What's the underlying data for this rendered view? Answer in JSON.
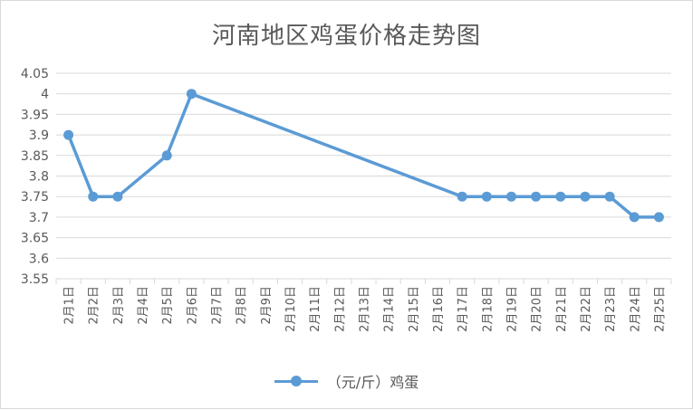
{
  "chart_data": {
    "type": "line",
    "title": "河南地区鸡蛋价格走势图",
    "categories": [
      "2月1日",
      "2月2日",
      "2月3日",
      "2月4日",
      "2月5日",
      "2月6日",
      "2月7日",
      "2月8日",
      "2月9日",
      "2月10日",
      "2月11日",
      "2月12日",
      "2月13日",
      "2月14日",
      "2月15日",
      "2月16日",
      "2月17日",
      "2月18日",
      "2月19日",
      "2月20日",
      "2月21日",
      "2月22日",
      "2月23日",
      "2月24日",
      "2月25日"
    ],
    "series": [
      {
        "name": "（元/斤）鸡蛋",
        "values": [
          3.9,
          3.75,
          3.75,
          null,
          3.85,
          4.0,
          null,
          null,
          null,
          null,
          null,
          null,
          null,
          null,
          null,
          null,
          3.75,
          3.75,
          3.75,
          3.75,
          3.75,
          3.75,
          3.75,
          3.7,
          3.7
        ]
      }
    ],
    "y_ticks": [
      "4.05",
      "4",
      "3.95",
      "3.9",
      "3.85",
      "3.8",
      "3.75",
      "3.7",
      "3.65",
      "3.6",
      "3.55"
    ],
    "ylim": [
      3.55,
      4.05
    ],
    "grid": true,
    "legend_position": "bottom",
    "line_color": "#5b9bd5"
  }
}
